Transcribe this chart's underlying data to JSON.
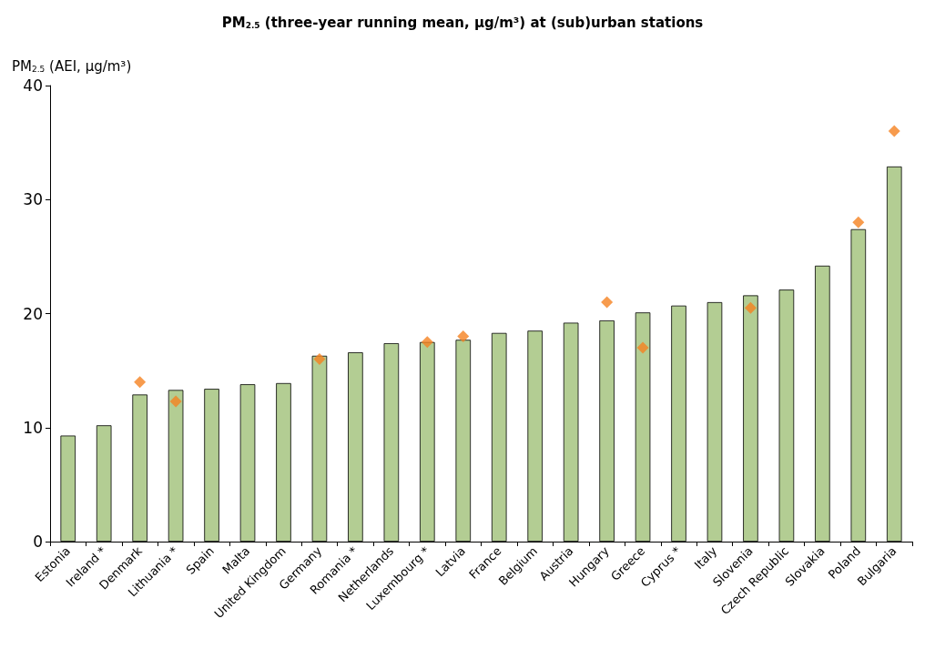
{
  "chart_data": {
    "type": "bar",
    "title": "PM$_{2.5}$ (three-year running mean, µg/m³) at (sub)urban stations",
    "ylabel": "PM$_{2.5}$ (AEI, µg/m³)",
    "categories": [
      "Estonia",
      "Ireland *",
      "Denmark",
      "Lithuania *",
      "Spain",
      "Malta",
      "United Kingdom",
      "Germany",
      "Romania *",
      "Netherlands",
      "Luxembourg *",
      "Latvia",
      "France",
      "Belgium",
      "Austria",
      "Hungary",
      "Greece",
      "Cyprus *",
      "Italy",
      "Slovenia",
      "Czech Republic",
      "Slovakia",
      "Poland",
      "Bulgaria"
    ],
    "series": [
      {
        "color": "#b3cd93",
        "values": [
          9.3,
          10.2,
          12.9,
          13.3,
          13.4,
          13.8,
          13.9,
          16.3,
          16.6,
          17.4,
          17.5,
          17.7,
          18.3,
          18.5,
          19.2,
          19.4,
          20.1,
          20.7,
          21.0,
          21.6,
          22.1,
          24.2,
          27.4,
          32.9
        ]
      },
      {
        "type": "scatter",
        "color": "#f58220",
        "marker": "diamond",
        "x": [
          "Denmark",
          "Lithuania *",
          "Germany",
          "Luxembourg *",
          "Latvia",
          "Hungary",
          "Greece",
          "Slovenia",
          "Poland",
          "Bulgaria"
        ],
        "values": [
          14.0,
          12.3,
          16.0,
          17.5,
          18.0,
          21.0,
          17.0,
          20.5,
          28.0,
          36.0
        ]
      }
    ],
    "ylim": [
      0,
      40
    ],
    "yticks": [
      0,
      10,
      20,
      30,
      40
    ],
    "grid": false
  }
}
